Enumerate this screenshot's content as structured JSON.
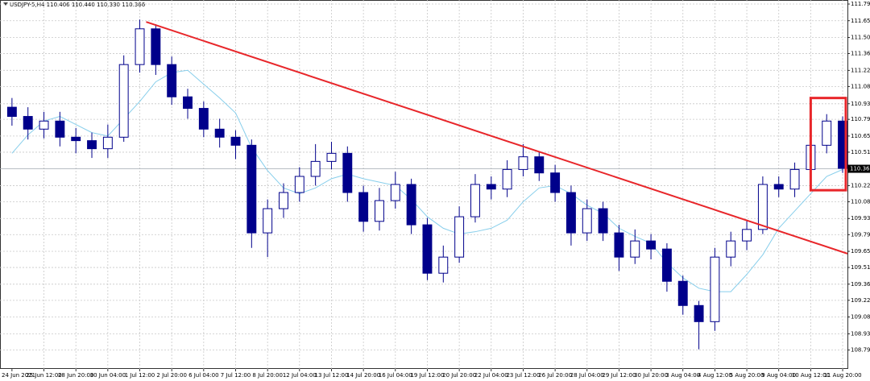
{
  "chart_data": {
    "type": "candlestick",
    "title": "USDJPY-5,H4 110.406 110.440 110.330 110.366",
    "xlim": [
      -1.5,
      104.6
    ],
    "xticks": [
      {
        "value": 0,
        "label": "24 Jun 2021"
      },
      {
        "value": 4,
        "label": "25 Jun 12:00"
      },
      {
        "value": 8,
        "label": "28 Jun 20:00"
      },
      {
        "value": 12,
        "label": "30 Jun 04:00"
      },
      {
        "value": 16,
        "label": "1 Jul 12:00"
      },
      {
        "value": 20,
        "label": "2 Jul 20:00"
      },
      {
        "value": 24,
        "label": "6 Jul 04:00"
      },
      {
        "value": 28,
        "label": "7 Jul 12:00"
      },
      {
        "value": 32,
        "label": "8 Jul 20:00"
      },
      {
        "value": 36,
        "label": "12 Jul 04:00"
      },
      {
        "value": 40,
        "label": "13 Jul 12:00"
      },
      {
        "value": 44,
        "label": "14 Jul 20:00"
      },
      {
        "value": 48,
        "label": "16 Jul 04:00"
      },
      {
        "value": 52,
        "label": "19 Jul 12:00"
      },
      {
        "value": 56,
        "label": "20 Jul 20:00"
      },
      {
        "value": 60,
        "label": "22 Jul 04:00"
      },
      {
        "value": 64,
        "label": "23 Jul 12:00"
      },
      {
        "value": 68,
        "label": "26 Jul 20:00"
      },
      {
        "value": 72,
        "label": "28 Jul 04:00"
      },
      {
        "value": 76,
        "label": "29 Jul 12:00"
      },
      {
        "value": 80,
        "label": "30 Jul 20:00"
      },
      {
        "value": 84,
        "label": "3 Aug 04:00"
      },
      {
        "value": 88,
        "label": "4 Aug 12:00"
      },
      {
        "value": 92,
        "label": "5 Aug 20:00"
      },
      {
        "value": 96,
        "label": "9 Aug 04:00"
      },
      {
        "value": 100,
        "label": "10 Aug 12:00"
      },
      {
        "value": 104,
        "label": "11 Aug 20:00"
      }
    ],
    "ylim": [
      108.63,
      111.83
    ],
    "yticks": [
      111.795,
      {
        "value": 111.65,
        "label": "111.650"
      },
      111.505,
      111.365,
      {
        "value": 111.22,
        "label": "111.220"
      },
      {
        "value": 111.08,
        "label": "111.080"
      },
      {
        "value": 110.93,
        "label": "110.930"
      },
      110.795,
      {
        "value": 110.65,
        "label": "110.650"
      },
      {
        "value": 110.51,
        "label": "110.510"
      },
      {
        "value": 110.22,
        "label": "110.220"
      },
      {
        "value": 110.08,
        "label": "110.080"
      },
      109.935,
      109.795,
      {
        "value": 109.65,
        "label": "109.650"
      },
      {
        "value": 109.51,
        "label": "109.510"
      },
      109.365,
      109.225,
      {
        "value": 109.08,
        "label": "109.080"
      },
      108.935,
      108.795
    ],
    "grid": true,
    "x": [
      0,
      2,
      4,
      6,
      8,
      10,
      12,
      14,
      16,
      18,
      20,
      22,
      24,
      26,
      28,
      30,
      32,
      34,
      36,
      38,
      40,
      42,
      44,
      46,
      48,
      50,
      52,
      54,
      56,
      58,
      60,
      62,
      64,
      66,
      68,
      70,
      72,
      74,
      76,
      78,
      80,
      82,
      84,
      86,
      88,
      90,
      92,
      94,
      96,
      98,
      100,
      102,
      104
    ],
    "open": [
      110.9,
      110.82,
      110.71,
      110.78,
      110.64,
      110.61,
      110.54,
      110.64,
      111.27,
      111.58,
      111.27,
      110.99,
      110.89,
      110.71,
      110.64,
      110.57,
      109.81,
      110.02,
      110.16,
      110.3,
      110.43,
      110.5,
      110.16,
      109.91,
      110.09,
      110.23,
      109.88,
      109.46,
      109.6,
      109.95,
      110.23,
      110.19,
      110.36,
      110.47,
      110.33,
      110.16,
      109.81,
      110.02,
      109.81,
      109.6,
      109.74,
      109.67,
      109.39,
      109.18,
      109.04,
      109.6,
      109.74,
      109.84,
      110.23,
      110.19,
      110.36,
      110.57,
      110.78
    ],
    "high": [
      110.98,
      110.9,
      110.86,
      110.86,
      110.72,
      110.68,
      110.75,
      111.35,
      111.66,
      111.62,
      111.34,
      111.06,
      110.95,
      110.8,
      110.7,
      110.62,
      110.1,
      110.24,
      110.38,
      110.58,
      110.6,
      110.56,
      110.22,
      110.2,
      110.34,
      110.28,
      109.94,
      109.7,
      110.04,
      110.32,
      110.3,
      110.44,
      110.58,
      110.52,
      110.4,
      110.22,
      110.1,
      110.08,
      109.88,
      109.84,
      109.8,
      109.72,
      109.44,
      109.22,
      109.68,
      109.82,
      109.92,
      110.3,
      110.3,
      110.42,
      110.64,
      110.84,
      110.82
    ],
    "low": [
      110.74,
      110.62,
      110.63,
      110.56,
      110.5,
      110.46,
      110.46,
      110.6,
      111.2,
      111.18,
      110.92,
      110.8,
      110.64,
      110.55,
      110.45,
      109.68,
      109.6,
      109.94,
      110.08,
      110.22,
      110.36,
      110.08,
      109.82,
      109.83,
      110.02,
      109.8,
      109.4,
      109.38,
      109.55,
      109.9,
      110.1,
      110.12,
      110.3,
      110.26,
      110.08,
      109.7,
      109.74,
      109.74,
      109.48,
      109.54,
      109.58,
      109.3,
      109.1,
      108.8,
      108.96,
      109.52,
      109.66,
      109.8,
      110.12,
      110.12,
      110.3,
      110.5,
      110.33
    ],
    "close": [
      110.82,
      110.71,
      110.78,
      110.64,
      110.61,
      110.54,
      110.64,
      111.27,
      111.58,
      111.27,
      110.99,
      110.89,
      110.71,
      110.64,
      110.57,
      109.81,
      110.02,
      110.16,
      110.3,
      110.43,
      110.5,
      110.16,
      109.91,
      110.09,
      110.23,
      109.88,
      109.46,
      109.6,
      109.95,
      110.23,
      110.19,
      110.36,
      110.47,
      110.33,
      110.16,
      109.81,
      110.02,
      109.81,
      109.6,
      109.74,
      109.67,
      109.39,
      109.18,
      109.04,
      109.6,
      109.74,
      109.84,
      110.23,
      110.19,
      110.36,
      110.57,
      110.78,
      110.37
    ],
    "color": "#00008b",
    "up_fill": "#ffffff",
    "moving_average": {
      "color": "#87ceeb",
      "values": [
        110.5,
        110.66,
        110.78,
        110.82,
        110.75,
        110.68,
        110.65,
        110.8,
        110.95,
        111.12,
        111.2,
        111.22,
        111.1,
        110.98,
        110.85,
        110.55,
        110.35,
        110.2,
        110.15,
        110.2,
        110.28,
        110.32,
        110.28,
        110.25,
        110.22,
        110.1,
        109.95,
        109.85,
        109.8,
        109.82,
        109.85,
        109.92,
        110.08,
        110.2,
        110.22,
        110.15,
        110.05,
        109.98,
        109.85,
        109.78,
        109.72,
        109.55,
        109.42,
        109.33,
        109.3,
        109.3,
        109.45,
        109.62,
        109.85,
        110.0,
        110.15,
        110.3,
        110.36
      ]
    },
    "current_price": {
      "value": 110.366,
      "label": "110.366",
      "color": "#a0a8b0"
    },
    "trendline": {
      "color": "#e8262a",
      "x": [
        16.8,
        104.6
      ],
      "y": [
        111.64,
        109.63
      ]
    },
    "highlight_box": {
      "color": "#e8262a",
      "xlim": [
        100,
        104.6
      ],
      "ylim": [
        110.18,
        110.98
      ]
    }
  }
}
